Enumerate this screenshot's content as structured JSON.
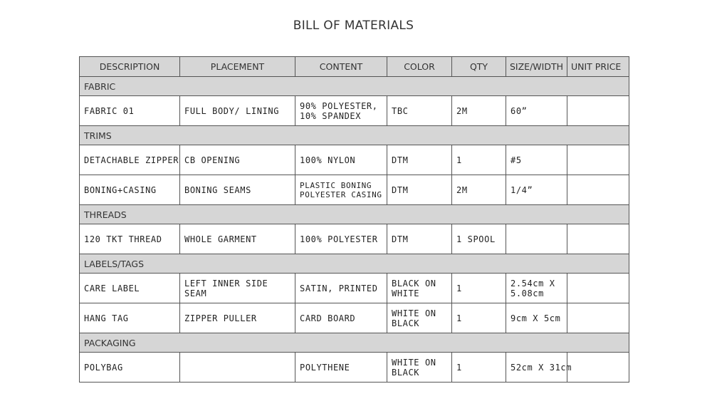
{
  "title": "BILL OF MATERIALS",
  "columns": [
    "DESCRIPTION",
    "PLACEMENT",
    "CONTENT",
    "COLOR",
    "QTY",
    "SIZE/WIDTH",
    "UNIT PRICE"
  ],
  "sections": [
    {
      "name": "FABRIC",
      "rows": [
        {
          "description": "FABRIC 01",
          "placement": "FULL BODY/ LINING",
          "content": "90% POLYESTER, 10% SPANDEX",
          "color": "TBC",
          "qty": "2M",
          "size": "60”",
          "price": ""
        }
      ]
    },
    {
      "name": "TRIMS",
      "rows": [
        {
          "description": "DETACHABLE ZIPPER",
          "placement": "CB OPENING",
          "content": "100% NYLON",
          "color": "DTM",
          "qty": "1",
          "size": "#5",
          "price": ""
        },
        {
          "description": "BONING+CASING",
          "placement": "BONING SEAMS",
          "content": "PLASTIC BONING POLYESTER CASING",
          "color": "DTM",
          "qty": "2M",
          "size": "1/4”",
          "price": ""
        }
      ]
    },
    {
      "name": "THREADS",
      "rows": [
        {
          "description": "120 TKT THREAD",
          "placement": "WHOLE GARMENT",
          "content": "100% POLYESTER",
          "color": "DTM",
          "qty": "1 SPOOL",
          "size": "",
          "price": ""
        }
      ]
    },
    {
      "name": "LABELS/TAGS",
      "rows": [
        {
          "description": "CARE LABEL",
          "placement": "LEFT INNER SIDE SEAM",
          "content": "SATIN, PRINTED",
          "color": "BLACK ON WHITE",
          "qty": "1",
          "size": "2.54cm X 5.08cm",
          "price": ""
        },
        {
          "description": "HANG TAG",
          "placement": "ZIPPER PULLER",
          "content": "CARD BOARD",
          "color": "WHITE ON BLACK",
          "qty": "1",
          "size": "9cm X 5cm",
          "price": ""
        }
      ]
    },
    {
      "name": "PACKAGING",
      "rows": [
        {
          "description": "POLYBAG",
          "placement": "",
          "content": "POLYTHENE",
          "color": "WHITE ON BLACK",
          "qty": "1",
          "size": "52cm X 31cm",
          "price": ""
        }
      ]
    }
  ]
}
